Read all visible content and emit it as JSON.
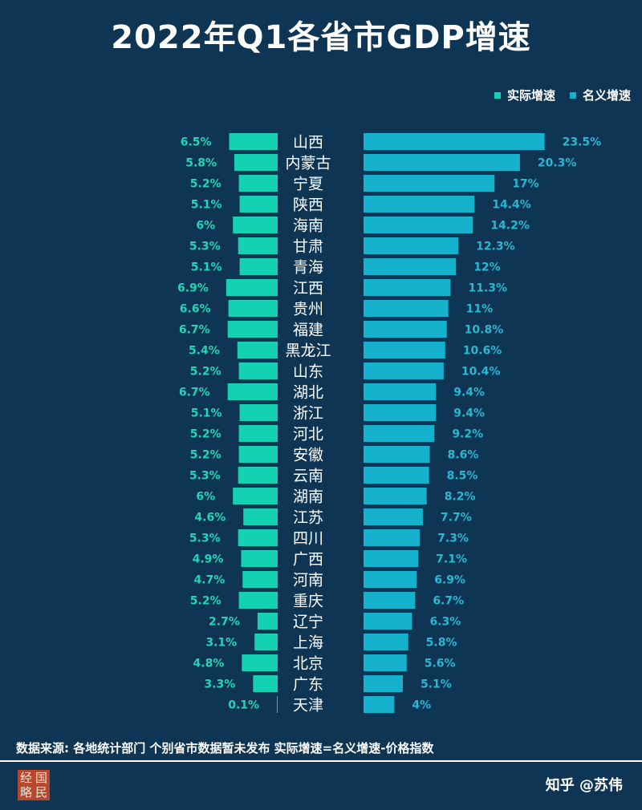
{
  "title": "2022年Q1各省市GDP增速",
  "colors": {
    "background": "#0e3554",
    "real": "#14d1b4",
    "nominal": "#16b1cc",
    "real_label": "#21d6b8",
    "nominal_label": "#27b8d2"
  },
  "chart_data": {
    "type": "bar",
    "title": "2022年Q1各省市GDP增速",
    "legend_position": "top-right",
    "categories": [
      "山西",
      "内蒙古",
      "宁夏",
      "陕西",
      "海南",
      "甘肃",
      "青海",
      "江西",
      "贵州",
      "福建",
      "黑龙江",
      "山东",
      "湖北",
      "浙江",
      "河北",
      "安徽",
      "云南",
      "湖南",
      "江苏",
      "四川",
      "广西",
      "河南",
      "重庆",
      "辽宁",
      "上海",
      "北京",
      "广东",
      "天津"
    ],
    "series": [
      {
        "name": "实际增速",
        "direction": "left",
        "unit": "%",
        "values": [
          6.5,
          5.8,
          5.2,
          5.1,
          6,
          5.3,
          5.1,
          6.9,
          6.6,
          6.7,
          5.4,
          5.2,
          6.7,
          5.1,
          5.2,
          5.2,
          5.3,
          6,
          4.6,
          5.3,
          4.9,
          4.7,
          5.2,
          2.7,
          3.1,
          4.8,
          3.3,
          0.1
        ]
      },
      {
        "name": "名义增速",
        "direction": "right",
        "unit": "%",
        "values": [
          23.5,
          20.3,
          17,
          14.4,
          14.2,
          12.3,
          12,
          11.3,
          11,
          10.8,
          10.6,
          10.4,
          9.4,
          9.4,
          9.2,
          8.6,
          8.5,
          8.2,
          7.7,
          7.3,
          7.1,
          6.9,
          6.7,
          6.3,
          5.8,
          5.6,
          5.1,
          4
        ]
      }
    ],
    "labels": {
      "real": [
        "6.5%",
        "5.8%",
        "5.2%",
        "5.1%",
        "6%",
        "5.3%",
        "5.1%",
        "6.9%",
        "6.6%",
        "6.7%",
        "5.4%",
        "5.2%",
        "6.7%",
        "5.1%",
        "5.2%",
        "5.2%",
        "5.3%",
        "6%",
        "4.6%",
        "5.3%",
        "4.9%",
        "4.7%",
        "5.2%",
        "2.7%",
        "3.1%",
        "4.8%",
        "3.3%",
        "0.1%"
      ],
      "nominal": [
        "23.5%",
        "20.3%",
        "17%",
        "14.4%",
        "14.2%",
        "12.3%",
        "12%",
        "11.3%",
        "11%",
        "10.8%",
        "10.6%",
        "10.4%",
        "9.4%",
        "9.4%",
        "9.2%",
        "8.6%",
        "8.5%",
        "8.2%",
        "7.7%",
        "7.3%",
        "7.1%",
        "6.9%",
        "6.7%",
        "6.3%",
        "5.8%",
        "5.6%",
        "5.1%",
        "4%"
      ]
    },
    "grid": false
  },
  "legend": {
    "real": "实际增速",
    "nominal": "名义增速"
  },
  "footer": {
    "source": "数据来源: 各地统计部门 个别省市数据暂未发布 实际增速=名义增速-价格指数",
    "stamp": [
      "经",
      "国",
      "略",
      "民"
    ],
    "credit": "知乎 @苏伟"
  }
}
